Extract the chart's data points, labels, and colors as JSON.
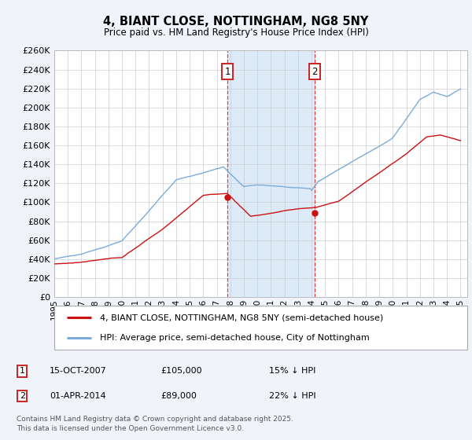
{
  "title": "4, BIANT CLOSE, NOTTINGHAM, NG8 5NY",
  "subtitle": "Price paid vs. HM Land Registry's House Price Index (HPI)",
  "ylabel_max": 260000,
  "ytick_step": 20000,
  "bg_color": "#f0f4fa",
  "plot_bg_color": "#ffffff",
  "grid_color": "#cccccc",
  "hpi_color": "#7aabdb",
  "price_color": "#cc1111",
  "shaded_color": "#ddeaf8",
  "legend_label_price": "4, BIANT CLOSE, NOTTINGHAM, NG8 5NY (semi-detached house)",
  "legend_label_hpi": "HPI: Average price, semi-detached house, City of Nottingham",
  "marker1_date": "15-OCT-2007",
  "marker1_price": "£105,000",
  "marker1_hpi": "15% ↓ HPI",
  "marker2_date": "01-APR-2014",
  "marker2_price": "£89,000",
  "marker2_hpi": "22% ↓ HPI",
  "footnote": "Contains HM Land Registry data © Crown copyright and database right 2025.\nThis data is licensed under the Open Government Licence v3.0.",
  "sale1_year": 2007.79,
  "sale1_price": 105000,
  "sale2_year": 2014.25,
  "sale2_price": 89000
}
